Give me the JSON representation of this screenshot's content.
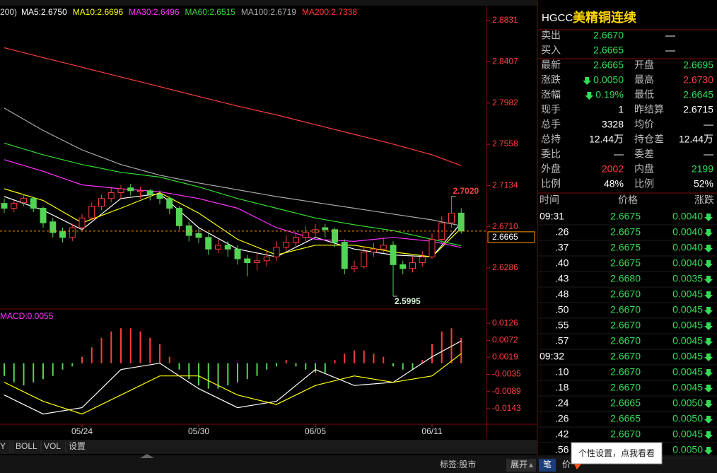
{
  "legend_prefix": "200)",
  "chart_data": [
    {
      "type": "candlestick",
      "ylim": [
        2.5915,
        2.8969
      ],
      "yticks": [
        2.8831,
        2.8407,
        2.7982,
        2.7558,
        2.7134,
        {
          "value": 2.671,
          "label": "2.6710"
        },
        2.6286
      ],
      "categories": [
        null,
        null,
        null,
        null,
        null,
        null,
        null,
        null,
        "05/24",
        null,
        null,
        null,
        null,
        null,
        null,
        null,
        null,
        null,
        null,
        null,
        "05/30",
        null,
        null,
        null,
        null,
        null,
        null,
        null,
        null,
        null,
        null,
        null,
        "06/05",
        null,
        null,
        null,
        null,
        null,
        null,
        null,
        null,
        null,
        null,
        null,
        "06/11",
        null,
        null,
        null
      ],
      "open": [
        2.695,
        2.69,
        2.696,
        2.7,
        2.69,
        2.676,
        2.666,
        2.66,
        2.67,
        2.68,
        2.692,
        2.7,
        2.706,
        2.711,
        2.707,
        2.708,
        2.704,
        2.7,
        2.69,
        2.672,
        2.664,
        2.66,
        2.648,
        2.652,
        2.648,
        2.638,
        2.634,
        2.636,
        2.64,
        2.65,
        2.655,
        2.66,
        2.665,
        2.67,
        2.668,
        2.655,
        2.628,
        2.63,
        2.645,
        2.648,
        2.652,
        2.632,
        2.628,
        2.634,
        2.64,
        2.658,
        2.675,
        2.685
      ],
      "high": [
        2.7,
        2.698,
        2.704,
        2.702,
        2.692,
        2.68,
        2.67,
        2.674,
        2.684,
        2.696,
        2.704,
        2.712,
        2.714,
        2.715,
        2.712,
        2.71,
        2.708,
        2.702,
        2.692,
        2.676,
        2.67,
        2.664,
        2.658,
        2.656,
        2.652,
        2.642,
        2.644,
        2.646,
        2.656,
        2.662,
        2.666,
        2.672,
        2.674,
        2.674,
        2.67,
        2.658,
        2.636,
        2.65,
        2.654,
        2.66,
        2.656,
        2.636,
        2.64,
        2.646,
        2.664,
        2.682,
        2.702,
        2.69
      ],
      "low": [
        2.685,
        2.686,
        2.692,
        2.686,
        2.67,
        2.66,
        2.655,
        2.656,
        2.666,
        2.678,
        2.688,
        2.696,
        2.7,
        2.703,
        2.7,
        2.698,
        2.694,
        2.684,
        2.668,
        2.656,
        2.654,
        2.642,
        2.644,
        2.64,
        2.632,
        2.62,
        2.626,
        2.63,
        2.636,
        2.646,
        2.65,
        2.656,
        2.66,
        2.66,
        2.65,
        2.622,
        2.624,
        2.628,
        2.64,
        2.644,
        2.5995,
        2.622,
        2.624,
        2.63,
        2.638,
        2.654,
        2.67,
        2.664
      ],
      "close": [
        2.69,
        2.695,
        2.7,
        2.69,
        2.675,
        2.665,
        2.66,
        2.67,
        2.68,
        2.692,
        2.7,
        2.706,
        2.71,
        2.708,
        2.708,
        2.704,
        2.7,
        2.69,
        2.672,
        2.662,
        2.66,
        2.648,
        2.652,
        2.648,
        2.638,
        2.634,
        2.636,
        2.64,
        2.65,
        2.655,
        2.66,
        2.665,
        2.668,
        2.668,
        2.655,
        2.628,
        2.63,
        2.645,
        2.648,
        2.652,
        2.632,
        2.628,
        2.634,
        2.64,
        2.658,
        2.675,
        2.685,
        2.6665
      ],
      "up_color": "#ff3c3c",
      "down_color": "#54d454",
      "series": [
        {
          "name": "MA5:2.6750",
          "color": "#ffffff",
          "x": [
            0,
            4,
            8,
            12,
            16,
            20,
            24,
            28,
            32,
            36,
            40,
            44,
            47
          ],
          "values": [
            2.702,
            2.688,
            2.668,
            2.7,
            2.705,
            2.67,
            2.648,
            2.64,
            2.66,
            2.648,
            2.642,
            2.64,
            2.675
          ]
        },
        {
          "name": "MA10:2.6696",
          "color": "#ffff00",
          "x": [
            0,
            4,
            8,
            12,
            16,
            20,
            24,
            28,
            32,
            36,
            40,
            44,
            47
          ],
          "values": [
            2.71,
            2.698,
            2.675,
            2.69,
            2.706,
            2.685,
            2.658,
            2.642,
            2.652,
            2.652,
            2.645,
            2.64,
            2.6696
          ]
        },
        {
          "name": "MA30:2.6496",
          "color": "#ff33ff",
          "x": [
            0,
            4,
            8,
            12,
            16,
            20,
            24,
            28,
            32,
            36,
            40,
            44,
            47
          ],
          "values": [
            2.74,
            2.728,
            2.714,
            2.71,
            2.707,
            2.7,
            2.69,
            2.67,
            2.658,
            2.656,
            2.66,
            2.656,
            2.6496
          ]
        },
        {
          "name": "MA60:2.6515",
          "color": "#33dd33",
          "x": [
            0,
            4,
            8,
            12,
            16,
            20,
            24,
            28,
            32,
            36,
            40,
            44,
            47
          ],
          "values": [
            2.757,
            2.745,
            2.735,
            2.727,
            2.722,
            2.712,
            2.7,
            2.69,
            2.68,
            2.673,
            2.667,
            2.658,
            2.6515
          ]
        },
        {
          "name": "MA100:2.6719",
          "color": "#aaaaaa",
          "x": [
            0,
            4,
            8,
            12,
            16,
            20,
            24,
            28,
            32,
            36,
            40,
            44,
            47
          ],
          "values": [
            2.793,
            2.77,
            2.75,
            2.735,
            2.724,
            2.716,
            2.709,
            2.702,
            2.696,
            2.69,
            2.684,
            2.678,
            2.6719
          ]
        },
        {
          "name": "MA200:2.7338",
          "color": "#ff3c3c",
          "x": [
            0,
            4,
            8,
            12,
            16,
            20,
            24,
            28,
            32,
            36,
            40,
            44,
            47
          ],
          "values": [
            2.855,
            2.845,
            2.835,
            2.825,
            2.815,
            2.805,
            2.795,
            2.786,
            2.776,
            2.766,
            2.756,
            2.745,
            2.7338
          ]
        }
      ],
      "annotations": [
        {
          "x": 46,
          "value": 2.702,
          "label": "2.7020"
        },
        {
          "x": 40,
          "value": 2.5995,
          "label": "2.5995"
        }
      ],
      "last_price": {
        "value": 2.6665,
        "label": "2.6665"
      }
    },
    {
      "type": "bar",
      "title": "MACD:0.0055",
      "ylim": [
        -0.0192,
        0.0164
      ],
      "yticks": [
        0.0126,
        0.0072,
        0.0019,
        -0.0035,
        -0.0089,
        -0.0143
      ],
      "values": [
        -0.004,
        -0.006,
        -0.007,
        -0.006,
        -0.005,
        -0.004,
        -0.002,
        -0.001,
        0.002,
        0.005,
        0.008,
        0.01,
        0.011,
        0.011,
        0.01,
        0.008,
        0.006,
        0.002,
        -0.002,
        -0.005,
        -0.007,
        -0.008,
        -0.008,
        -0.007,
        -0.006,
        -0.005,
        -0.004,
        -0.002,
        -0.001,
        0.001,
        -0.001,
        -0.002,
        -0.003,
        -0.003,
        0.001,
        0.003,
        0.004,
        0.004,
        0.003,
        0.002,
        -0.001,
        -0.002,
        -0.002,
        0.001,
        0.006,
        0.01,
        0.011,
        0.008
      ],
      "up_color": "#ff3c3c",
      "down_color": "#54d454",
      "series": [
        {
          "color": "#ffffff",
          "x": [
            0,
            4,
            8,
            12,
            16,
            20,
            24,
            28,
            32,
            36,
            40,
            44,
            47
          ],
          "values": [
            -0.01,
            -0.016,
            -0.014,
            -0.002,
            0.0,
            -0.008,
            -0.014,
            -0.012,
            -0.002,
            -0.007,
            -0.006,
            0.002,
            0.007
          ]
        },
        {
          "color": "#ffff00",
          "x": [
            0,
            4,
            8,
            12,
            16,
            20,
            24,
            28,
            32,
            36,
            40,
            44,
            47
          ],
          "values": [
            -0.006,
            -0.012,
            -0.016,
            -0.01,
            -0.004,
            -0.004,
            -0.01,
            -0.013,
            -0.007,
            -0.004,
            -0.006,
            -0.004,
            0.003
          ]
        }
      ]
    }
  ],
  "quote": {
    "symbol": "HGCC",
    "name": "美精铜连续",
    "order_rows": [
      [
        "卖出",
        "2.6670",
        "—"
      ],
      [
        "买入",
        "2.6665",
        "—"
      ]
    ],
    "rows": [
      [
        "最新",
        "2.6665",
        "开盘",
        "2.6695"
      ],
      [
        "涨跌",
        "0.0050",
        "最高",
        "2.6730"
      ],
      [
        "涨幅",
        "0.19%",
        "最低",
        "2.6645"
      ],
      [
        "现手",
        "1",
        "昨结算",
        "2.6715"
      ],
      [
        "总手",
        "3328",
        "均价",
        "—"
      ],
      [
        "总持",
        "12.44万",
        "持仓差",
        "12.44万"
      ],
      [
        "委比",
        "—",
        "委差",
        "—"
      ],
      [
        "外盘",
        "2002",
        "内盘",
        "2199"
      ],
      [
        "比例",
        "48%",
        "比例",
        "52%"
      ]
    ],
    "tick_header": [
      "时间",
      "价格",
      "涨跌"
    ],
    "ticks": [
      {
        "time": "09:31",
        "price": "2.6675",
        "change": "0.0040"
      },
      {
        "time": ".26",
        "price": "2.6675",
        "change": "0.0040"
      },
      {
        "time": ".37",
        "price": "2.6675",
        "change": "0.0040"
      },
      {
        "time": ".40",
        "price": "2.6675",
        "change": "0.0040"
      },
      {
        "time": ".43",
        "price": "2.6680",
        "change": "0.0035"
      },
      {
        "time": ".48",
        "price": "2.6670",
        "change": "0.0045"
      },
      {
        "time": ".50",
        "price": "2.6670",
        "change": "0.0045"
      },
      {
        "time": ".55",
        "price": "2.6670",
        "change": "0.0045"
      },
      {
        "time": ".57",
        "price": "2.6670",
        "change": "0.0045"
      },
      {
        "time": "09:32",
        "price": "2.6670",
        "change": "0.0045"
      },
      {
        "time": ".10",
        "price": "2.6670",
        "change": "0.0045"
      },
      {
        "time": ".18",
        "price": "2.6670",
        "change": "0.0045"
      },
      {
        "time": ".24",
        "price": "2.6665",
        "change": "0.0050"
      },
      {
        "time": ".26",
        "price": "2.6665",
        "change": "0.0050"
      },
      {
        "time": ".42",
        "price": "2.6670",
        "change": "0.0045"
      },
      {
        "time": ".56",
        "change": "0.0050"
      }
    ]
  },
  "bottom": {
    "tabs": [
      "Y",
      "BOLL",
      "VOL",
      "设置"
    ],
    "tag": "标签:股市",
    "expand": "展开",
    "pen": "笔",
    "price": "价",
    "tooltip": "个性设置，点我看看"
  }
}
